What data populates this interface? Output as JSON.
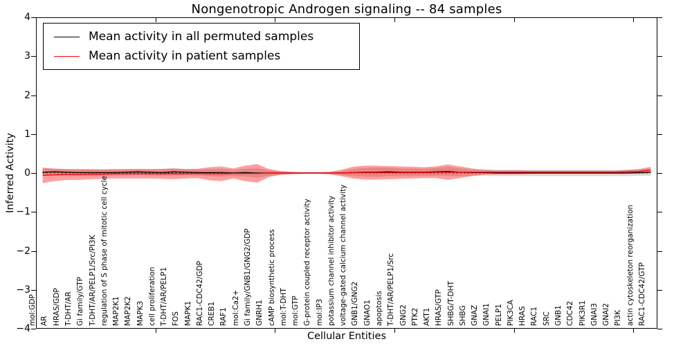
{
  "title": "Nongenotropic Androgen signaling -- 84 samples",
  "xlabel": "Cellular Entities",
  "ylabel": "Inferred Activity",
  "legend": {
    "items": [
      {
        "label": "Mean activity in all permuted samples",
        "color": "#000000"
      },
      {
        "label": "Mean activity in patient samples",
        "color": "#ff0000"
      }
    ],
    "position": "upper left"
  },
  "colors": {
    "permuted_line": "#000000",
    "patient_line": "#ff0000",
    "permuted_band": "rgba(128,128,128,0.30)",
    "patient_band": "rgba(255,0,0,0.38)",
    "zero_line": "#000000"
  },
  "chart_data": {
    "type": "line",
    "title": "Nongenotropic Androgen signaling -- 84 samples",
    "xlabel": "Cellular Entities",
    "ylabel": "Inferred Activity",
    "ylim": [
      -4,
      4
    ],
    "yticks": [
      4,
      3,
      2,
      1,
      0,
      -1,
      -2,
      -3,
      -4
    ],
    "x_major_tick_every": 10,
    "grid": false,
    "zero_reference_line": "black dotted",
    "legend_position": "upper left",
    "categories": [
      "mol:GDP",
      "AR",
      "HRAS/GDP",
      "T-DHT/AR",
      "Gi family/GTP",
      "T-DHT/AR/PELP1/Src/PI3K",
      "regulation of S phase of mitotic cell cycle",
      "MAP2K1",
      "MAP2K2",
      "MAPK3",
      "cell proliferation",
      "T-DHT/AR/PELP1",
      "FOS",
      "MAPK1",
      "RAC1-CDC42/GDP",
      "CREB1",
      "RAF1",
      "mol:Ca2+",
      "Gi family/GNB1/GNG2/GDP",
      "GNRH1",
      "cAMP biosynthetic process",
      "mol:T-DHT",
      "mol:GTP",
      "G-protein coupled receptor activity",
      "mol:IP3",
      "potassium channel inhibitor activity",
      "voltage-gated calcium channel activity",
      "GNB1/GNG2",
      "GNAO1",
      "apoptosis",
      "T-DHT/AR/PELP1/Src",
      "GNG2",
      "PTK2",
      "AKT1",
      "HRAS/GTP",
      "SHBG/T-DHT",
      "SHBG",
      "GNAZ",
      "GNAI1",
      "PELP1",
      "PIK3CA",
      "HRAS",
      "RAC1",
      "SRC",
      "GNB1",
      "CDC42",
      "PIK3R1",
      "GNAI3",
      "GNAI2",
      "PI3K",
      "actin cytoskeleton reorganization",
      "RAC1-CDC42/GTP"
    ],
    "series": [
      {
        "name": "Mean activity in all permuted samples",
        "line_color": "#000000",
        "band_fill": "rgba(128,128,128,0.30)",
        "mean": [
          0.02,
          0.03,
          0.02,
          0.01,
          0.01,
          0.01,
          0.01,
          0.02,
          0.03,
          0.02,
          0.01,
          0.03,
          0.02,
          0.01,
          0.01,
          0.01,
          0.0,
          0.01,
          0.0,
          0.0,
          0.0,
          0.0,
          0.0,
          0.0,
          0.0,
          0.0,
          0.01,
          0.02,
          0.02,
          0.03,
          0.02,
          0.02,
          0.02,
          0.03,
          0.04,
          0.02,
          0.01,
          0.01,
          0.0,
          0.0,
          0.0,
          0.0,
          0.0,
          0.0,
          0.0,
          0.0,
          0.0,
          0.0,
          0.0,
          0.0,
          0.01,
          0.02
        ],
        "std": [
          0.1,
          0.09,
          0.08,
          0.08,
          0.08,
          0.08,
          0.08,
          0.08,
          0.08,
          0.08,
          0.08,
          0.09,
          0.08,
          0.08,
          0.09,
          0.1,
          0.08,
          0.1,
          0.12,
          0.07,
          0.04,
          0.02,
          0.02,
          0.02,
          0.02,
          0.05,
          0.09,
          0.11,
          0.12,
          0.11,
          0.1,
          0.1,
          0.09,
          0.1,
          0.12,
          0.1,
          0.08,
          0.08,
          0.08,
          0.08,
          0.08,
          0.08,
          0.08,
          0.08,
          0.08,
          0.08,
          0.08,
          0.08,
          0.08,
          0.08,
          0.08,
          0.09
        ]
      },
      {
        "name": "Mean activity in patient samples",
        "line_color": "#ff0000",
        "band_fill": "rgba(255,0,0,0.38)",
        "mean": [
          -0.06,
          -0.05,
          -0.04,
          -0.04,
          -0.03,
          -0.03,
          -0.02,
          -0.02,
          -0.02,
          -0.02,
          -0.02,
          -0.02,
          -0.02,
          -0.01,
          -0.02,
          -0.02,
          -0.01,
          -0.01,
          -0.01,
          0.0,
          0.0,
          0.0,
          0.0,
          0.0,
          0.0,
          0.0,
          0.01,
          0.01,
          0.01,
          0.01,
          0.01,
          0.01,
          0.01,
          0.02,
          0.02,
          0.02,
          0.02,
          0.02,
          0.02,
          0.02,
          0.02,
          0.02,
          0.02,
          0.02,
          0.02,
          0.02,
          0.02,
          0.02,
          0.02,
          0.03,
          0.04,
          0.08
        ],
        "std": [
          0.2,
          0.16,
          0.14,
          0.14,
          0.13,
          0.12,
          0.12,
          0.12,
          0.12,
          0.12,
          0.13,
          0.14,
          0.12,
          0.12,
          0.17,
          0.19,
          0.13,
          0.2,
          0.24,
          0.1,
          0.05,
          0.03,
          0.02,
          0.02,
          0.03,
          0.08,
          0.15,
          0.18,
          0.18,
          0.17,
          0.16,
          0.15,
          0.14,
          0.15,
          0.2,
          0.15,
          0.1,
          0.06,
          0.05,
          0.05,
          0.05,
          0.04,
          0.04,
          0.04,
          0.04,
          0.04,
          0.04,
          0.04,
          0.04,
          0.05,
          0.06,
          0.08
        ]
      }
    ]
  }
}
